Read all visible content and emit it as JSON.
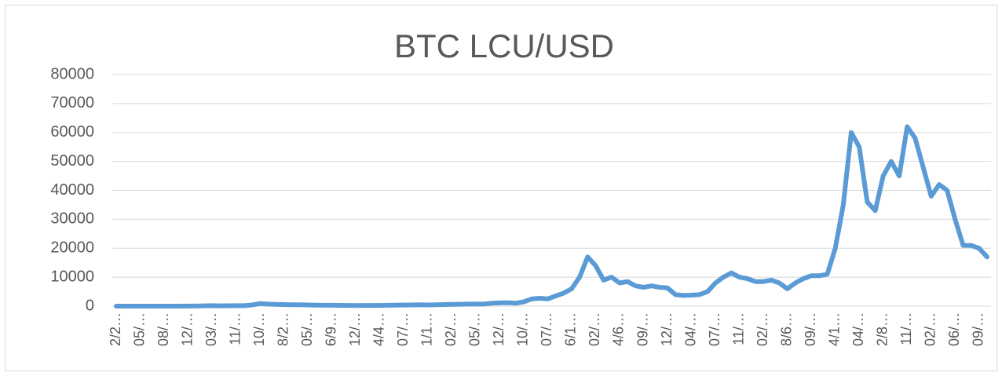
{
  "chart_data": {
    "type": "line",
    "title": "BTC LCU/USD",
    "categories": [
      "2/2…",
      null,
      null,
      "05/…",
      null,
      null,
      "08/…",
      null,
      null,
      "12/…",
      null,
      null,
      "03/…",
      null,
      null,
      "11/…",
      null,
      null,
      "10/…",
      null,
      null,
      "8/2…",
      null,
      null,
      "05/…",
      null,
      null,
      "6/9…",
      null,
      null,
      "12/…",
      null,
      null,
      "4/4…",
      null,
      null,
      "07/…",
      null,
      null,
      "1/1…",
      null,
      null,
      "02/…",
      null,
      null,
      "05/…",
      null,
      null,
      "12/…",
      null,
      null,
      "10/…",
      null,
      null,
      "07/…",
      null,
      null,
      "6/1…",
      null,
      null,
      "02/…",
      null,
      null,
      "4/6…",
      null,
      null,
      "09/…",
      null,
      null,
      "12/…",
      null,
      null,
      "04/…",
      null,
      null,
      "07/…",
      null,
      null,
      "11/…",
      null,
      null,
      "02/…",
      null,
      null,
      "8/6…",
      null,
      null,
      "09/…",
      null,
      null,
      "4/1…",
      null,
      null,
      "04/…",
      null,
      null,
      "2/8…",
      null,
      null,
      "11/…",
      null,
      null,
      "02/…",
      null,
      null,
      "06/…",
      null,
      null,
      "09/…",
      null
    ],
    "series": [
      {
        "name": "BTC LCU/USD",
        "color": "#5b9bd5",
        "values": [
          0,
          0,
          0,
          5,
          10,
          10,
          5,
          5,
          10,
          15,
          15,
          100,
          150,
          120,
          130,
          150,
          150,
          400,
          900,
          700,
          600,
          550,
          500,
          450,
          400,
          350,
          300,
          300,
          280,
          250,
          230,
          240,
          250,
          250,
          300,
          350,
          380,
          420,
          450,
          420,
          450,
          550,
          600,
          650,
          700,
          750,
          700,
          1000,
          1100,
          1200,
          1000,
          1500,
          2500,
          2700,
          2500,
          3500,
          4500,
          6000,
          10000,
          17000,
          14000,
          9000,
          10000,
          8000,
          8500,
          7000,
          6500,
          7000,
          6500,
          6300,
          4000,
          3700,
          3800,
          4000,
          5000,
          8000,
          10000,
          11500,
          10000,
          9500,
          8500,
          8500,
          9000,
          8000,
          6000,
          8000,
          9500,
          10500,
          10500,
          11000,
          20000,
          35000,
          60000,
          55000,
          36000,
          33000,
          45000,
          50000,
          45000,
          62000,
          58000,
          48000,
          38000,
          42000,
          40000,
          30000,
          21000,
          21000,
          20000,
          17000
        ]
      }
    ],
    "ylim": [
      0,
      80000
    ],
    "yticks": [
      0,
      10000,
      20000,
      30000,
      40000,
      50000,
      60000,
      70000,
      80000
    ],
    "grid": true
  }
}
